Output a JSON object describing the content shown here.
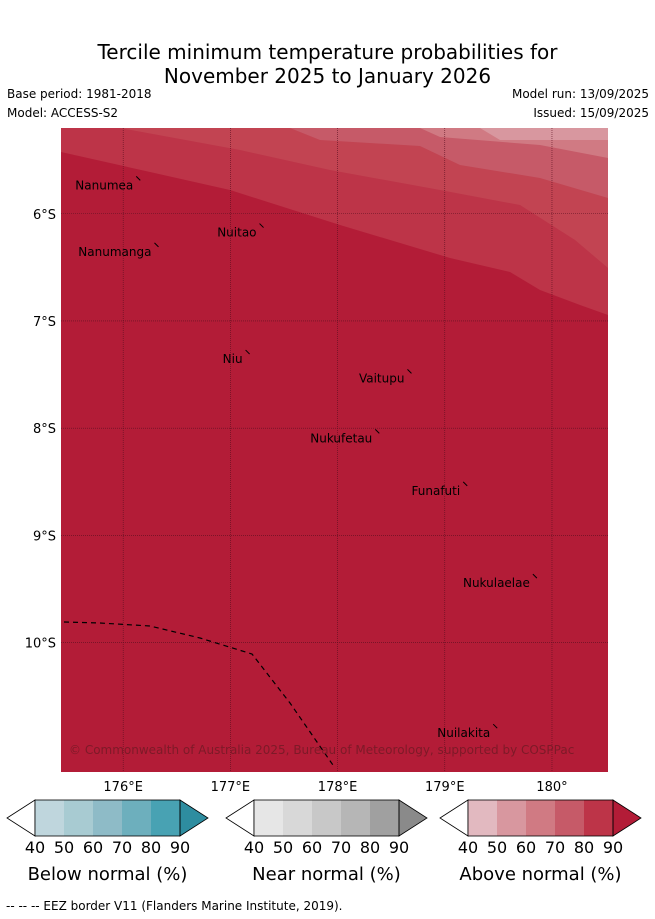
{
  "title": {
    "line1": "Tercile minimum temperature probabilities for",
    "line2": "November 2025 to January 2026"
  },
  "meta": {
    "base_period": "Base period: 1981-2018",
    "model": "Model: ACCESS-S2",
    "model_run": "Model run: 13/09/2025",
    "issued": "Issued: 15/09/2025"
  },
  "map": {
    "lat_labels": [
      "6°S",
      "7°S",
      "8°S",
      "9°S",
      "10°S"
    ],
    "lon_labels": [
      "176°E",
      "177°E",
      "178°E",
      "179°E",
      "180°"
    ],
    "places": [
      {
        "name": "Nanumea",
        "lon": 176.15,
        "lat": -5.67
      },
      {
        "name": "Nuitao",
        "lon": 177.3,
        "lat": -6.11
      },
      {
        "name": "Nanumanga",
        "lon": 176.32,
        "lat": -6.29
      },
      {
        "name": "Niu",
        "lon": 177.17,
        "lat": -7.29
      },
      {
        "name": "Vaitupu",
        "lon": 178.68,
        "lat": -7.47
      },
      {
        "name": "Nukufetau",
        "lon": 178.38,
        "lat": -8.03
      },
      {
        "name": "Funafuti",
        "lon": 179.2,
        "lat": -8.52
      },
      {
        "name": "Nukulaelae",
        "lon": 179.85,
        "lat": -9.38
      },
      {
        "name": "Nuilakita",
        "lon": 179.48,
        "lat": -10.78
      }
    ],
    "copyright": "© Commonwealth of Australia 2025, Bureau of Meteorology, supported by COSPPac",
    "base_color": "#b31c37"
  },
  "legends": [
    {
      "name": "Below normal (%)",
      "colors": [
        "#ffffff",
        "#bfd6dd",
        "#a8cbd2",
        "#8ebbc7",
        "#6dafbd",
        "#48a2b3",
        "#2e8da0"
      ]
    },
    {
      "name": "Near normal (%)",
      "colors": [
        "#ffffff",
        "#e6e6e6",
        "#d8d8d8",
        "#c8c8c8",
        "#b6b6b6",
        "#a0a0a0",
        "#8a8a8a"
      ]
    },
    {
      "name": "Above normal (%)",
      "colors": [
        "#ffffff",
        "#e2b9c0",
        "#d8979f",
        "#d07a83",
        "#c65a68",
        "#bd3448",
        "#b31c37"
      ]
    }
  ],
  "legend_ticks": [
    "40",
    "50",
    "60",
    "70",
    "80",
    "90"
  ],
  "footer": "-- -- -- EEZ border V11 (Flanders Marine Institute, 2019)."
}
